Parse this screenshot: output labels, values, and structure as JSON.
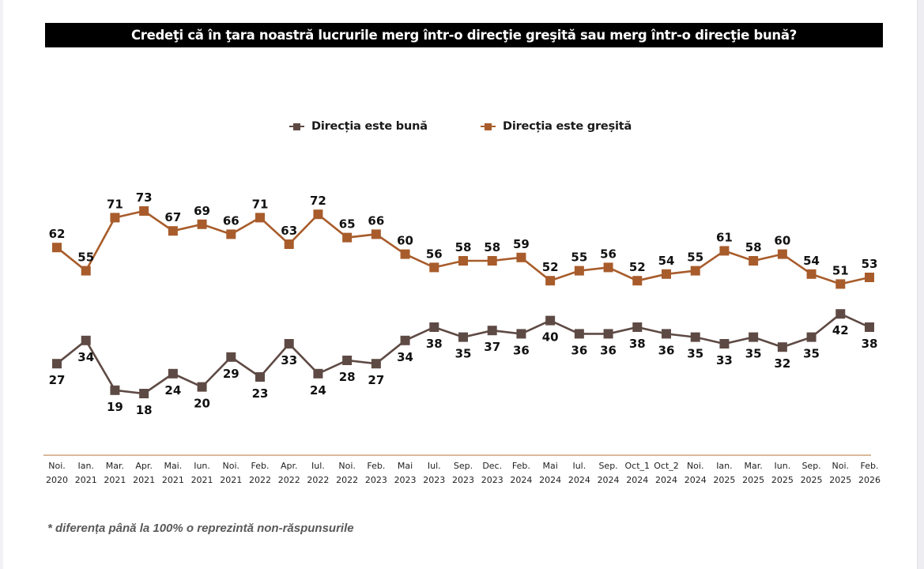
{
  "title": "Credeţi că în ţara noastră lucrurile merg într-o direcţie greşită sau merg într-o direcţie bună?",
  "footnote": "* diferența până la 100% o reprezintă non-răspunsurile",
  "chart_data": {
    "type": "line",
    "title": "Credeţi că în ţara noastră lucrurile merg într-o direcţie greşită sau merg într-o direcţie bună?",
    "xlabel": "",
    "ylabel": "",
    "ylim": [
      18,
      73
    ],
    "grid": false,
    "legend": "top-center",
    "categories": [
      [
        "Noi.",
        "2020"
      ],
      [
        "Ian.",
        "2021"
      ],
      [
        "Mar.",
        "2021"
      ],
      [
        "Apr.",
        "2021"
      ],
      [
        "Mai.",
        "2021"
      ],
      [
        "Iun.",
        "2021"
      ],
      [
        "Noi.",
        "2021"
      ],
      [
        "Feb.",
        "2022"
      ],
      [
        "Apr.",
        "2022"
      ],
      [
        "Iul.",
        "2022"
      ],
      [
        "Noi.",
        "2022"
      ],
      [
        "Feb.",
        "2023"
      ],
      [
        "Mai",
        "2023"
      ],
      [
        "Iul.",
        "2023"
      ],
      [
        "Sep.",
        "2023"
      ],
      [
        "Dec.",
        "2023"
      ],
      [
        "Feb.",
        "2024"
      ],
      [
        "Mai",
        "2024"
      ],
      [
        "Iul.",
        "2024"
      ],
      [
        "Sep.",
        "2024"
      ],
      [
        "Oct_1",
        "2024"
      ],
      [
        "Oct_2",
        "2024"
      ],
      [
        "Noi.",
        "2024"
      ],
      [
        "Ian.",
        "2025"
      ],
      [
        "Mar.",
        "2025"
      ],
      [
        "Iun.",
        "2025"
      ],
      [
        "Sep.",
        "2025"
      ],
      [
        "Noi.",
        "2025"
      ],
      [
        "Feb.",
        "2026"
      ]
    ],
    "series": [
      {
        "name": "Direcția este bună",
        "color": "#5e4a44",
        "label_position": "below",
        "values": [
          27,
          34,
          19,
          18,
          24,
          20,
          29,
          23,
          33,
          24,
          28,
          27,
          34,
          38,
          35,
          37,
          36,
          40,
          36,
          36,
          38,
          36,
          35,
          33,
          35,
          32,
          35,
          42,
          38
        ]
      },
      {
        "name": "Direcția este greșită",
        "color": "#a85c2b",
        "label_position": "above",
        "values": [
          62,
          55,
          71,
          73,
          67,
          69,
          66,
          71,
          63,
          72,
          65,
          66,
          60,
          56,
          58,
          58,
          59,
          52,
          55,
          56,
          52,
          54,
          55,
          61,
          58,
          60,
          54,
          51,
          53
        ]
      }
    ],
    "axis_color": "#d9b99a"
  }
}
